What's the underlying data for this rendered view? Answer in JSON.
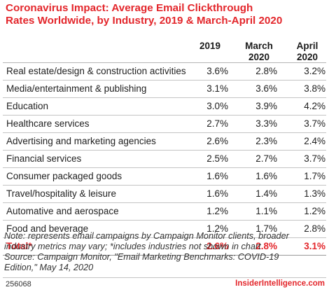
{
  "title_lines": [
    "Coronavirus Impact: Average Email Clickthrough",
    "Rates Worldwide, by Industry, 2019 & March-April 2020"
  ],
  "chart_data": {
    "type": "table",
    "columns": [
      {
        "lines": [
          "2019"
        ]
      },
      {
        "lines": [
          "March",
          "2020"
        ]
      },
      {
        "lines": [
          "April",
          "2020"
        ]
      }
    ],
    "rows": [
      {
        "label": "Real estate/design & construction activities",
        "values": [
          "3.6%",
          "2.8%",
          "3.2%"
        ]
      },
      {
        "label": "Media/entertainment & publishing",
        "values": [
          "3.1%",
          "3.6%",
          "3.8%"
        ]
      },
      {
        "label": "Education",
        "values": [
          "3.0%",
          "3.9%",
          "4.2%"
        ]
      },
      {
        "label": "Healthcare services",
        "values": [
          "2.7%",
          "3.3%",
          "3.7%"
        ]
      },
      {
        "label": "Advertising and marketing agencies",
        "values": [
          "2.6%",
          "2.3%",
          "2.4%"
        ]
      },
      {
        "label": "Financial services",
        "values": [
          "2.5%",
          "2.7%",
          "3.7%"
        ]
      },
      {
        "label": "Consumer packaged goods",
        "values": [
          "1.6%",
          "1.6%",
          "1.7%"
        ]
      },
      {
        "label": "Travel/hospitality & leisure",
        "values": [
          "1.6%",
          "1.4%",
          "1.3%"
        ]
      },
      {
        "label": "Automative and aerospace",
        "values": [
          "1.2%",
          "1.1%",
          "1.2%"
        ]
      },
      {
        "label": "Food and beverage",
        "values": [
          "1.2%",
          "1.7%",
          "2.8%"
        ]
      }
    ],
    "total": {
      "label": "Total*",
      "values": [
        "2.6%",
        "2.8%",
        "3.1%"
      ]
    }
  },
  "note_lines": [
    "Note: represents email campaigns by Campaign Monitor clients, broader",
    "industry metrics may vary; *includes industries not shown in chart",
    "Source: Campaign Monitor, \"Email Marketing Benchmarks: COVID-19",
    "Edition,\" May 14, 2020"
  ],
  "footer": {
    "id": "256068",
    "brand": "InsiderIntelligence.com"
  },
  "colors": {
    "accent": "#e3262b",
    "rule": "#c4c4c4"
  }
}
